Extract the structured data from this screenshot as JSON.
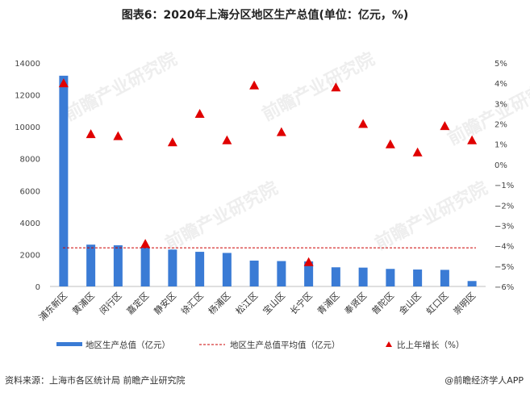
{
  "chart_data": {
    "type": "bar",
    "title": "图表6：2020年上海分区地区生产总值(单位：亿元，%)",
    "categories": [
      "浦东新区",
      "黄浦区",
      "闵行区",
      "嘉定区",
      "静安区",
      "徐汇区",
      "杨浦区",
      "松江区",
      "宝山区",
      "长宁区",
      "青浦区",
      "奉贤区",
      "普陀区",
      "金山区",
      "虹口区",
      "崇明区"
    ],
    "series": [
      {
        "name": "地区生产总值（亿元）",
        "axis": "left",
        "mark": "bar",
        "color": "#3A7BD5",
        "values": [
          13200,
          2620,
          2580,
          2470,
          2310,
          2170,
          2100,
          1620,
          1590,
          1570,
          1200,
          1180,
          1100,
          1060,
          1040,
          340
        ]
      },
      {
        "name": "地区生产总值平均值（亿元）",
        "axis": "left",
        "mark": "dashed-line",
        "color": "#CC0000",
        "value": 2420
      },
      {
        "name": "比上年增长（%）",
        "axis": "right",
        "mark": "triangle",
        "color": "#E00000",
        "values": [
          4.0,
          1.5,
          1.4,
          -3.9,
          1.1,
          2.5,
          1.2,
          3.9,
          1.6,
          -4.8,
          3.8,
          2.0,
          1.0,
          0.6,
          1.9,
          1.2
        ]
      }
    ],
    "y_left": {
      "ylim": [
        0,
        14000
      ],
      "ticks": [
        0,
        2000,
        4000,
        6000,
        8000,
        10000,
        12000,
        14000
      ]
    },
    "y_right": {
      "ylim": [
        -6,
        5
      ],
      "ticks": [
        5,
        4,
        3,
        2,
        1,
        0,
        -1,
        -2,
        -3,
        -4,
        -5,
        -6
      ],
      "tick_suffix": "%"
    },
    "legend_placement": "bottom",
    "grid": false
  },
  "footer": {
    "source": "资料来源：上海市各区统计局 前瞻产业研究院",
    "brand": "@前瞻经济学人APP"
  },
  "watermark": {
    "text": "前瞻产业研究院"
  }
}
